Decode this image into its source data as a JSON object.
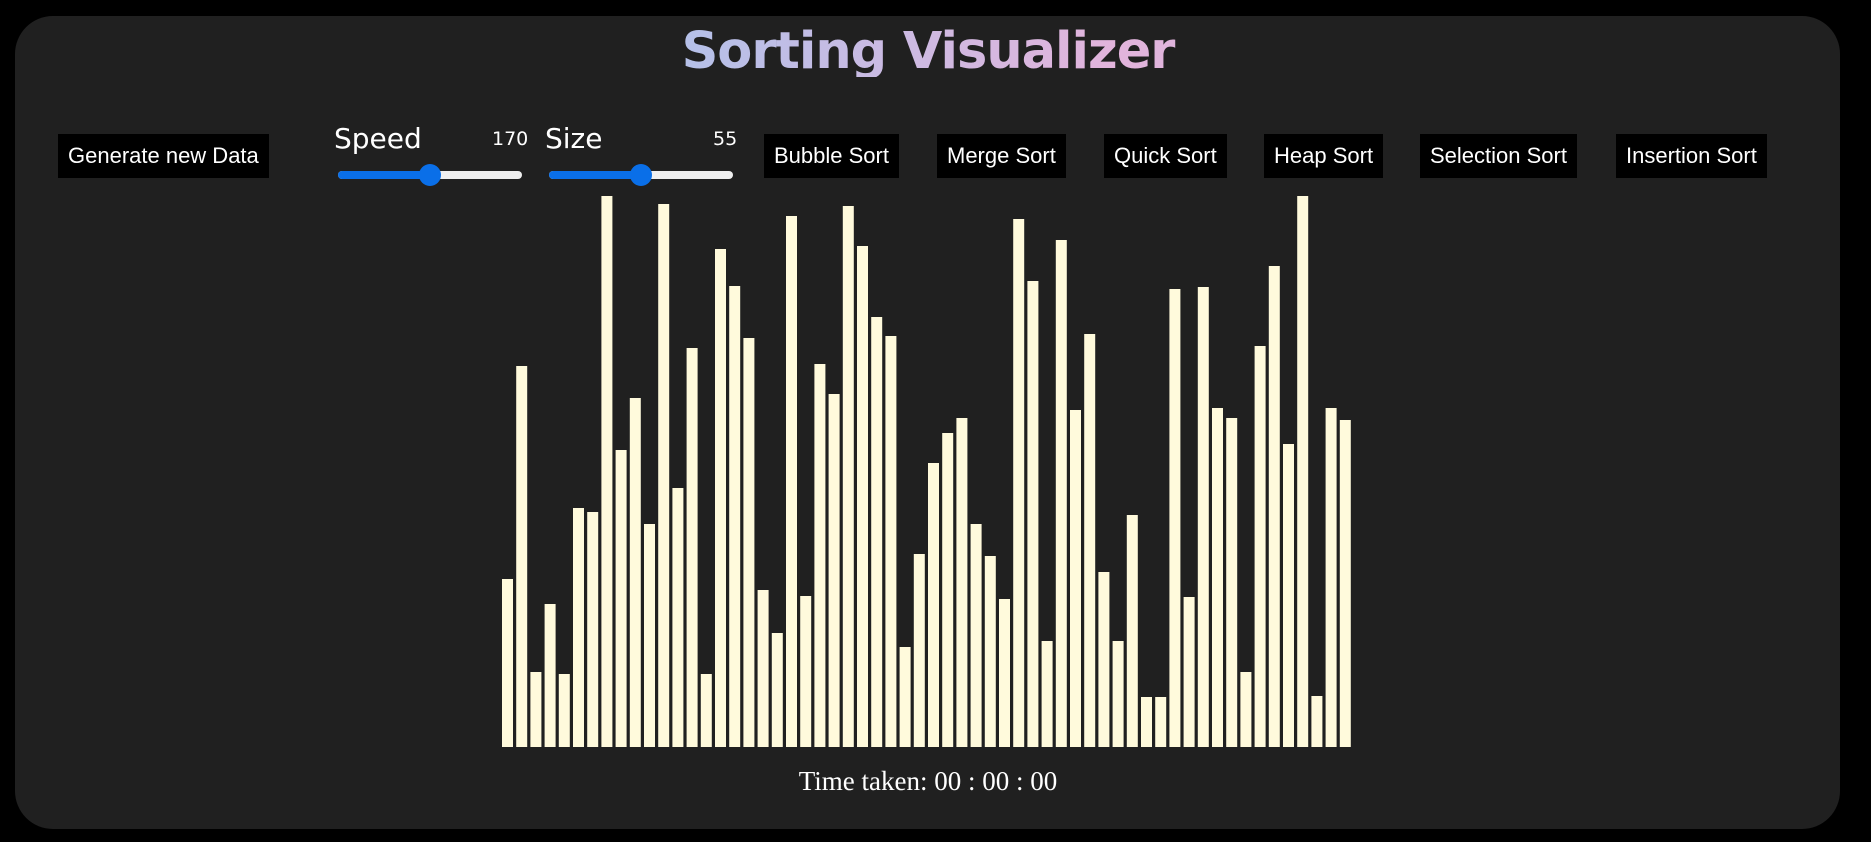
{
  "header": {
    "title": "Sorting Visualizer"
  },
  "controls": {
    "generate_label": "Generate new Data",
    "speed": {
      "label": "Speed",
      "value": 170,
      "fraction": 0.5
    },
    "size": {
      "label": "Size",
      "value": 55,
      "fraction": 0.5
    },
    "algorithms": {
      "bubble": "Bubble Sort",
      "merge": "Merge Sort",
      "quick": "Quick Sort",
      "heap": "Heap Sort",
      "selection": "Selection Sort",
      "insertion": "Insertion Sort"
    }
  },
  "chart_data": {
    "type": "bar",
    "bar_color": "#fffadc",
    "ylim": [
      0,
      551
    ],
    "values": [
      168,
      381,
      75,
      143,
      73,
      239,
      235,
      551,
      297,
      349,
      223,
      543,
      259,
      399,
      73,
      498,
      461,
      409,
      157,
      114,
      531,
      151,
      383,
      353,
      541,
      501,
      430,
      411,
      100,
      193,
      284,
      314,
      329,
      223,
      191,
      148,
      528,
      466,
      106,
      507,
      337,
      413,
      175,
      106,
      232,
      50,
      50,
      458,
      150,
      460,
      339,
      329,
      75,
      401,
      481,
      303,
      551,
      51,
      339,
      327
    ]
  },
  "footer": {
    "time_text": "Time taken: 00 : 00 : 00"
  }
}
